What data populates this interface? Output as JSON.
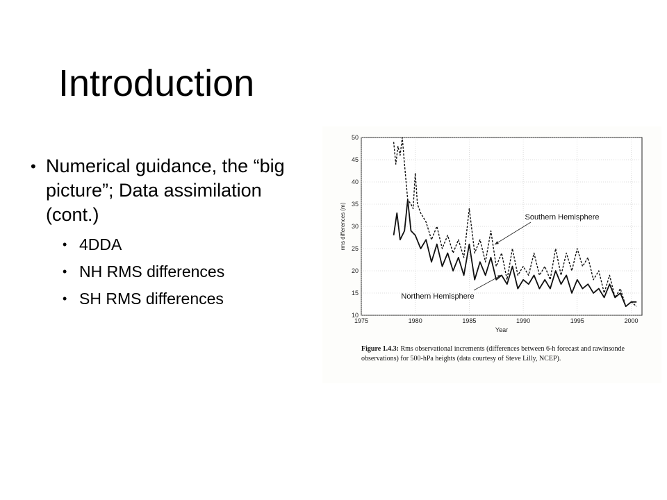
{
  "slide": {
    "title": "Introduction",
    "bullets": [
      "Numerical guidance, the “big picture”; Data assimilation (cont.)"
    ],
    "sub_bullets": [
      "4DDA",
      "NH RMS differences",
      "SH RMS differences"
    ]
  },
  "figure": {
    "caption_label": "Figure 1.4.3:",
    "caption_text": "Rms observational increments (differences between 6-h forecast and rawinsonde observations) for 500-hPa heights (data courtesy of Steve Lilly, NCEP)."
  },
  "chart_data": {
    "type": "line",
    "title": "",
    "xlabel": "Year",
    "ylabel": "rms differences (m)",
    "xlim": [
      1975,
      2001
    ],
    "ylim": [
      10,
      50
    ],
    "xticks": [
      1975,
      1980,
      1985,
      1990,
      1995,
      2000
    ],
    "yticks": [
      10,
      15,
      20,
      25,
      30,
      35,
      40,
      45,
      50
    ],
    "grid": true,
    "annotations": [
      {
        "text": "Southern Hemisphere",
        "series": "Southern Hemisphere"
      },
      {
        "text": "Northern Hemisphere",
        "series": "Northern Hemisphere"
      }
    ],
    "series": [
      {
        "name": "Southern Hemisphere",
        "style": "dashed",
        "x": [
          1978.0,
          1978.2,
          1978.4,
          1978.6,
          1978.8,
          1979.0,
          1979.3,
          1979.6,
          1979.8,
          1980.0,
          1980.2,
          1980.5,
          1981.0,
          1981.5,
          1982.0,
          1982.5,
          1983.0,
          1983.5,
          1984.0,
          1984.5,
          1985.0,
          1985.5,
          1986.0,
          1986.5,
          1987.0,
          1987.5,
          1988.0,
          1988.5,
          1989.0,
          1989.5,
          1990.0,
          1990.5,
          1991.0,
          1991.5,
          1992.0,
          1992.5,
          1993.0,
          1993.5,
          1994.0,
          1994.5,
          1995.0,
          1995.5,
          1996.0,
          1996.5,
          1997.0,
          1997.5,
          1998.0,
          1998.5,
          1999.0,
          1999.5,
          2000.0,
          2000.5
        ],
        "values": [
          49,
          44,
          48,
          46,
          50,
          44,
          36,
          35,
          34,
          42,
          35,
          33,
          31,
          27,
          30,
          25,
          28,
          24,
          27,
          23,
          34,
          24,
          27,
          22,
          29,
          21,
          24,
          18,
          25,
          19,
          21,
          19,
          24,
          19,
          21,
          18,
          25,
          19,
          24,
          20,
          25,
          21,
          23,
          18,
          20,
          15,
          19,
          14,
          16,
          12,
          13,
          12
        ]
      },
      {
        "name": "Northern Hemisphere",
        "style": "solid",
        "x": [
          1978.0,
          1978.3,
          1978.6,
          1979.0,
          1979.3,
          1979.6,
          1980.0,
          1980.5,
          1981.0,
          1981.5,
          1982.0,
          1982.5,
          1983.0,
          1983.5,
          1984.0,
          1984.5,
          1985.0,
          1985.5,
          1986.0,
          1986.5,
          1987.0,
          1987.5,
          1988.0,
          1988.5,
          1989.0,
          1989.5,
          1990.0,
          1990.5,
          1991.0,
          1991.5,
          1992.0,
          1992.5,
          1993.0,
          1993.5,
          1994.0,
          1994.5,
          1995.0,
          1995.5,
          1996.0,
          1996.5,
          1997.0,
          1997.5,
          1998.0,
          1998.5,
          1999.0,
          1999.5,
          2000.0,
          2000.5
        ],
        "values": [
          28,
          33,
          27,
          29,
          36,
          29,
          28,
          25,
          27,
          22,
          26,
          21,
          24,
          20,
          23,
          19,
          26,
          18,
          22,
          19,
          23,
          18,
          19,
          17,
          21,
          16,
          18,
          17,
          19,
          16,
          18,
          16,
          20,
          17,
          19,
          15,
          18,
          16,
          17,
          15,
          16,
          14,
          17,
          14,
          15,
          12,
          13,
          13
        ]
      }
    ]
  }
}
